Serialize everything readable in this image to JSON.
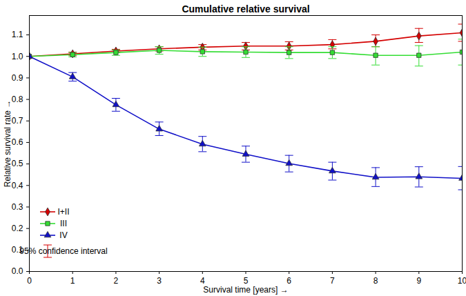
{
  "chart_data": {
    "type": "line",
    "title": "Cumulative relative survival",
    "x_label": "Survival time [years]",
    "y_label": "Relative survival rate",
    "x": [
      0,
      1,
      2,
      3,
      4,
      5,
      6,
      7,
      8,
      9,
      10
    ],
    "series": [
      {
        "name": "I+II",
        "color": "#d40000",
        "marker": "diamond",
        "values": [
          1.0,
          1.012,
          1.025,
          1.035,
          1.043,
          1.048,
          1.048,
          1.055,
          1.07,
          1.095,
          1.11
        ],
        "ci_lower": [
          null,
          1.005,
          1.017,
          1.025,
          1.03,
          1.03,
          1.03,
          1.035,
          1.045,
          1.065,
          1.07
        ],
        "ci_upper": [
          null,
          1.02,
          1.033,
          1.045,
          1.055,
          1.065,
          1.068,
          1.078,
          1.1,
          1.13,
          1.15
        ]
      },
      {
        "name": "III",
        "color": "#33dd33",
        "marker": "square",
        "values": [
          1.0,
          1.008,
          1.018,
          1.028,
          1.022,
          1.02,
          1.018,
          1.018,
          1.005,
          1.005,
          1.02
        ],
        "ci_lower": [
          null,
          0.998,
          1.005,
          1.01,
          1.0,
          0.995,
          0.99,
          0.99,
          0.96,
          0.955,
          0.96
        ],
        "ci_upper": [
          null,
          1.018,
          1.03,
          1.045,
          1.043,
          1.045,
          1.045,
          1.045,
          1.045,
          1.05,
          1.08
        ]
      },
      {
        "name": "IV",
        "color": "#1010c8",
        "marker": "triangle",
        "values": [
          1.0,
          0.905,
          0.775,
          0.662,
          0.592,
          0.545,
          0.502,
          0.467,
          0.438,
          0.44,
          0.433
        ],
        "ci_lower": [
          null,
          0.885,
          0.745,
          0.632,
          0.557,
          0.508,
          0.463,
          0.425,
          0.395,
          0.393,
          0.38
        ],
        "ci_upper": [
          null,
          0.925,
          0.805,
          0.695,
          0.628,
          0.583,
          0.54,
          0.508,
          0.483,
          0.487,
          0.488
        ]
      }
    ],
    "xlim": [
      0,
      10
    ],
    "ylim": [
      0,
      1.19
    ],
    "xticks": [
      0,
      1,
      2,
      3,
      4,
      5,
      6,
      7,
      8,
      9,
      10
    ],
    "yticks": [
      {
        "value": 0,
        "label": "0.0"
      },
      0.1,
      0.2,
      0.3,
      0.4,
      0.5,
      0.6,
      0.7,
      0.8,
      0.9,
      {
        "value": 1.0,
        "label": "1.0"
      },
      1.1
    ],
    "legend": "lower left",
    "ci_label": "95% confidence interval"
  }
}
